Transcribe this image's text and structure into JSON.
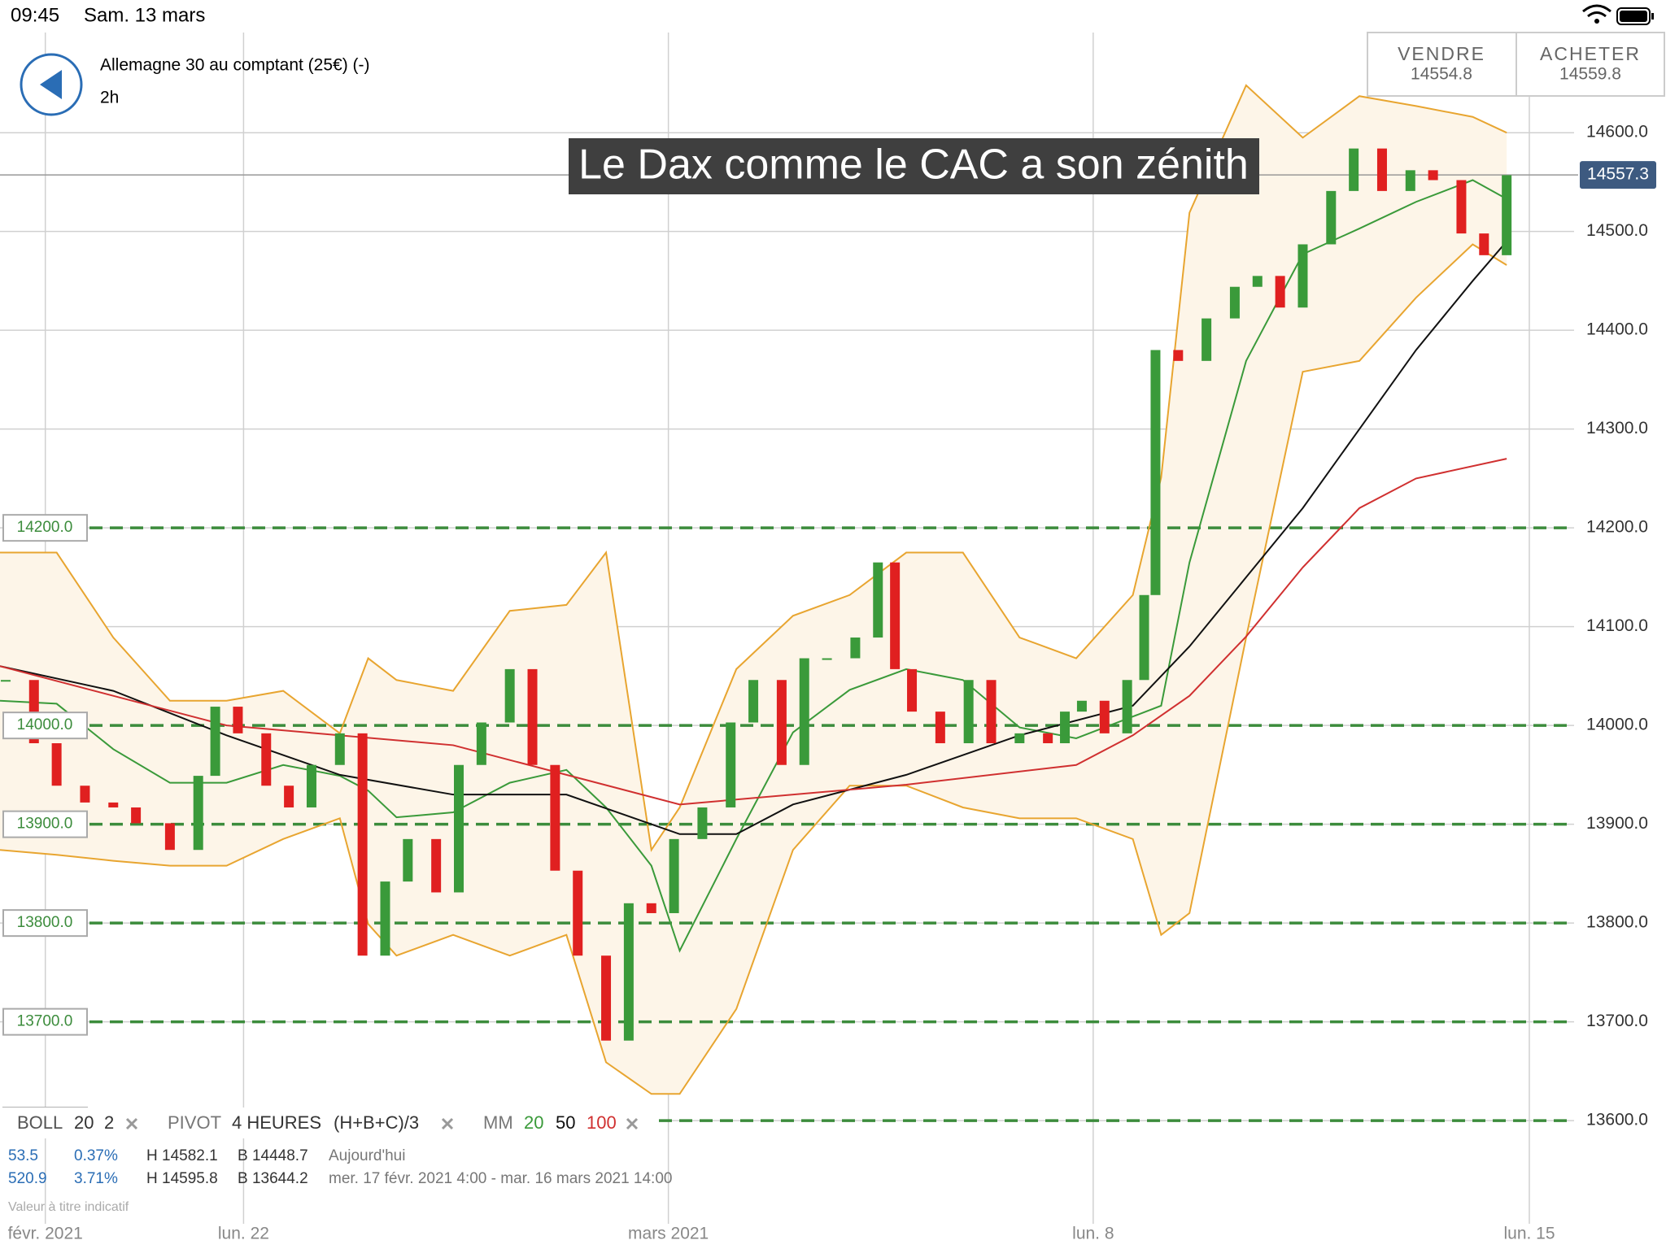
{
  "status_bar": {
    "time": "09:45",
    "date": "Sam. 13 mars"
  },
  "header": {
    "instrument": "Allemagne 30 au comptant (25€) (-)",
    "timeframe": "2h",
    "sell_label": "VENDRE",
    "sell_price": "14554.8",
    "buy_label": "ACHETER",
    "buy_price": "14559.8"
  },
  "chart_data": {
    "type": "candlestick",
    "title": "Le Dax comme le CAC a son zénith",
    "up_color": "#3a9a3a",
    "down_color": "#e02020",
    "x": [
      1,
      6,
      10,
      15,
      20,
      24,
      30,
      35,
      38,
      42,
      47,
      51,
      55,
      60,
      64,
      68,
      72,
      77,
      81,
      85,
      90,
      94,
      98,
      102,
      107,
      111,
      115,
      119,
      124,
      129,
      133,
      138,
      142,
      146,
      151,
      155,
      158,
      161,
      166,
      171,
      175,
      180,
      185,
      188,
      191,
      195,
      199,
      202,
      204,
      208,
      213,
      218,
      222,
      226,
      230,
      235,
      239,
      244,
      249,
      253,
      258,
      262,
      266
    ],
    "values": [
      14046,
      13982,
      13939,
      13922,
      13917,
      13901,
      13874,
      13949,
      14019,
      13992,
      13939,
      13917,
      13960,
      13992,
      13767,
      13842,
      13885,
      13831,
      13960,
      14003,
      14057,
      13960,
      13853,
      13767,
      13681,
      13820,
      13810,
      13885,
      13917,
      14003,
      14046,
      13960,
      14068,
      14068,
      14089,
      14165,
      14057,
      14014,
      13982,
      14046,
      13982,
      13992,
      13982,
      14014,
      14025,
      13992,
      14046,
      14132,
      14380,
      14369,
      14412,
      14444,
      14455,
      14423,
      14487,
      14541,
      14584,
      14541,
      14562,
      14552,
      14498,
      14476,
      14557
    ],
    "overlays": [
      {
        "color": "#e8a530",
        "x": [
          0,
          10,
          20,
          30,
          40,
          50,
          60,
          65,
          70,
          80,
          90,
          100,
          107,
          115,
          120,
          130,
          140,
          150,
          160,
          170,
          180,
          190,
          200,
          205,
          210,
          220,
          230,
          240,
          250,
          260,
          266
        ],
        "values": [
          14175,
          14175,
          14089,
          14025,
          14025,
          14035,
          13992,
          14068,
          14046,
          14035,
          14116,
          14122,
          14175,
          13874,
          13917,
          14057,
          14111,
          14132,
          14175,
          14175,
          14089,
          14068,
          14132,
          14251,
          14519,
          14648,
          14595,
          14637,
          14627,
          14616,
          14600
        ]
      },
      {
        "color": "#e8a530",
        "x": [
          0,
          10,
          20,
          30,
          40,
          50,
          60,
          65,
          70,
          80,
          90,
          100,
          107,
          115,
          120,
          130,
          140,
          150,
          160,
          170,
          180,
          190,
          200,
          205,
          210,
          220,
          230,
          240,
          250,
          260,
          266
        ],
        "values": [
          13874,
          13869,
          13863,
          13858,
          13858,
          13885,
          13906,
          13799,
          13767,
          13788,
          13767,
          13788,
          13659,
          13627,
          13627,
          13713,
          13874,
          13939,
          13939,
          13917,
          13906,
          13906,
          13885,
          13788,
          13810,
          14089,
          14358,
          14369,
          14433,
          14487,
          14466
        ]
      },
      {
        "color": "#3a9a3a",
        "x": [
          0,
          10,
          20,
          30,
          40,
          50,
          60,
          65,
          70,
          80,
          90,
          100,
          107,
          115,
          120,
          130,
          140,
          150,
          160,
          170,
          180,
          190,
          200,
          205,
          210,
          220,
          230,
          240,
          250,
          260,
          266
        ],
        "values": [
          14025,
          14022,
          13976,
          13942,
          13942,
          13960,
          13949,
          13934,
          13907,
          13912,
          13942,
          13955,
          13917,
          13858,
          13772,
          13885,
          13993,
          14036,
          14057,
          14046,
          13998,
          13987,
          14009,
          14020,
          14165,
          14369,
          14477,
          14503,
          14530,
          14552,
          14533
        ]
      },
      {
        "color": "#111111",
        "x": [
          0,
          20,
          40,
          60,
          80,
          100,
          120,
          130,
          140,
          160,
          180,
          200,
          210,
          220,
          230,
          240,
          250,
          260,
          266
        ],
        "values": [
          14060,
          14035,
          13990,
          13950,
          13930,
          13930,
          13890,
          13890,
          13920,
          13950,
          13990,
          14020,
          14080,
          14150,
          14220,
          14300,
          14380,
          14450,
          14490
        ]
      },
      {
        "color": "#d03030",
        "x": [
          0,
          40,
          80,
          120,
          160,
          190,
          200,
          210,
          220,
          230,
          240,
          250,
          266
        ],
        "values": [
          14060,
          14000,
          13980,
          13920,
          13940,
          13960,
          13990,
          14030,
          14090,
          14160,
          14220,
          14250,
          14270
        ]
      }
    ],
    "xlim": [
      0,
      270
    ],
    "xticks": [
      {
        "value": 8,
        "label": "févr. 2021"
      },
      {
        "value": 43,
        "label": "lun. 22"
      },
      {
        "value": 118,
        "label": "mars 2021"
      },
      {
        "value": 193,
        "label": "lun. 8"
      },
      {
        "value": 270,
        "label": "lun. 15"
      }
    ],
    "ylim": [
      13540,
      14680
    ],
    "yticks": [
      {
        "value": 14600,
        "label": "14600.0"
      },
      {
        "value": 14500,
        "label": "14500.0"
      },
      {
        "value": 14400,
        "label": "14400.0"
      },
      {
        "value": 14300,
        "label": "14300.0"
      },
      {
        "value": 14200,
        "label": "14200.0"
      },
      {
        "value": 14100,
        "label": "14100.0"
      },
      {
        "value": 14000,
        "label": "14000.0"
      },
      {
        "value": 13900,
        "label": "13900.0"
      },
      {
        "value": 13800,
        "label": "13800.0"
      },
      {
        "value": 13700,
        "label": "13700.0"
      },
      {
        "value": 13600,
        "label": "13600.0"
      }
    ],
    "pivots": [
      {
        "value": 14200,
        "label": "14200.0"
      },
      {
        "value": 14000,
        "label": "14000.0"
      },
      {
        "value": 13900,
        "label": "13900.0"
      },
      {
        "value": 13800,
        "label": "13800.0"
      },
      {
        "value": 13700,
        "label": "13700.0"
      },
      {
        "value": 13600,
        "label": "13600.0"
      }
    ],
    "pivot_color": "#3c8c3c",
    "current_price": 14557.3,
    "grid": true
  },
  "indicators": {
    "boll": "BOLL",
    "boll_period": "20",
    "boll_dev": "2",
    "pivot": "PIVOT",
    "pivot_period": "4 HEURES",
    "pivot_formula": "(H+B+C)/3",
    "mm": "MM",
    "mm_1": "20",
    "mm_2": "50",
    "mm_3": "100"
  },
  "stats": [
    {
      "change": "53.5",
      "change_pct": "0.37%",
      "high": "H 14582.1",
      "low": "B 14448.7",
      "period": "Aujourd'hui"
    },
    {
      "change": "520.9",
      "change_pct": "3.71%",
      "high": "H 14595.8",
      "low": "B 13644.2",
      "period": "mer. 17 févr. 2021 4:00 - mar. 16 mars 2021 14:00"
    }
  ],
  "note": "Valeur à titre indicatif"
}
